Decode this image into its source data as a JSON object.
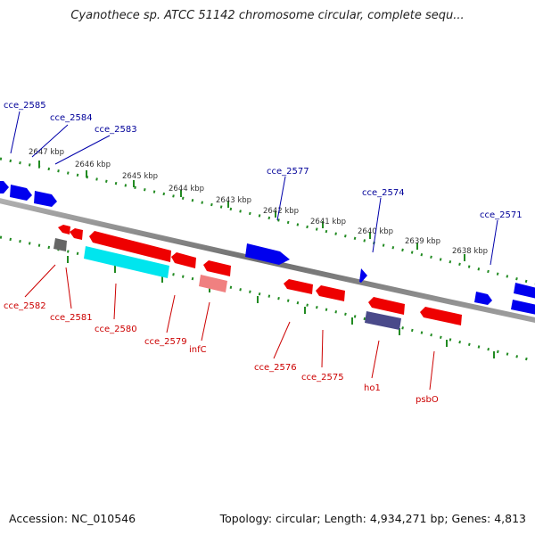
{
  "title": "Cyanothece sp. ATCC 51142 chromosome circular, complete sequ...",
  "footer": {
    "accession": "Accession: NC_010546",
    "summary": "Topology: circular; Length: 4,934,271 bp; Genes: 4,813"
  },
  "kbp_labels": [
    "2647 kbp",
    "2646 kbp",
    "2645 kbp",
    "2644 kbp",
    "2643 kbp",
    "2642 kbp",
    "2641 kbp",
    "2640 kbp",
    "2639 kbp",
    "2638 kbp"
  ],
  "top_labels": [
    "cce_2585",
    "cce_2584",
    "cce_2583",
    "cce_2577",
    "cce_2574",
    "cce_2571"
  ],
  "bottom_labels": [
    "cce_2582",
    "cce_2581",
    "cce_2580",
    "cce_2579",
    "infC",
    "cce_2576",
    "cce_2575",
    "ho1",
    "psbO"
  ],
  "colors": {
    "forward_gene": "#0000ee",
    "reverse_gene": "#ee0000",
    "rna_gene": "#00e5ee",
    "pseudo_gene": "#f08080",
    "dark_gene": "#4a4a8a",
    "grey_gene": "#666666",
    "axis": "#888888",
    "ticks": "#228b22",
    "top_label_text": "#000099",
    "bottom_label_text": "#cc0000"
  }
}
